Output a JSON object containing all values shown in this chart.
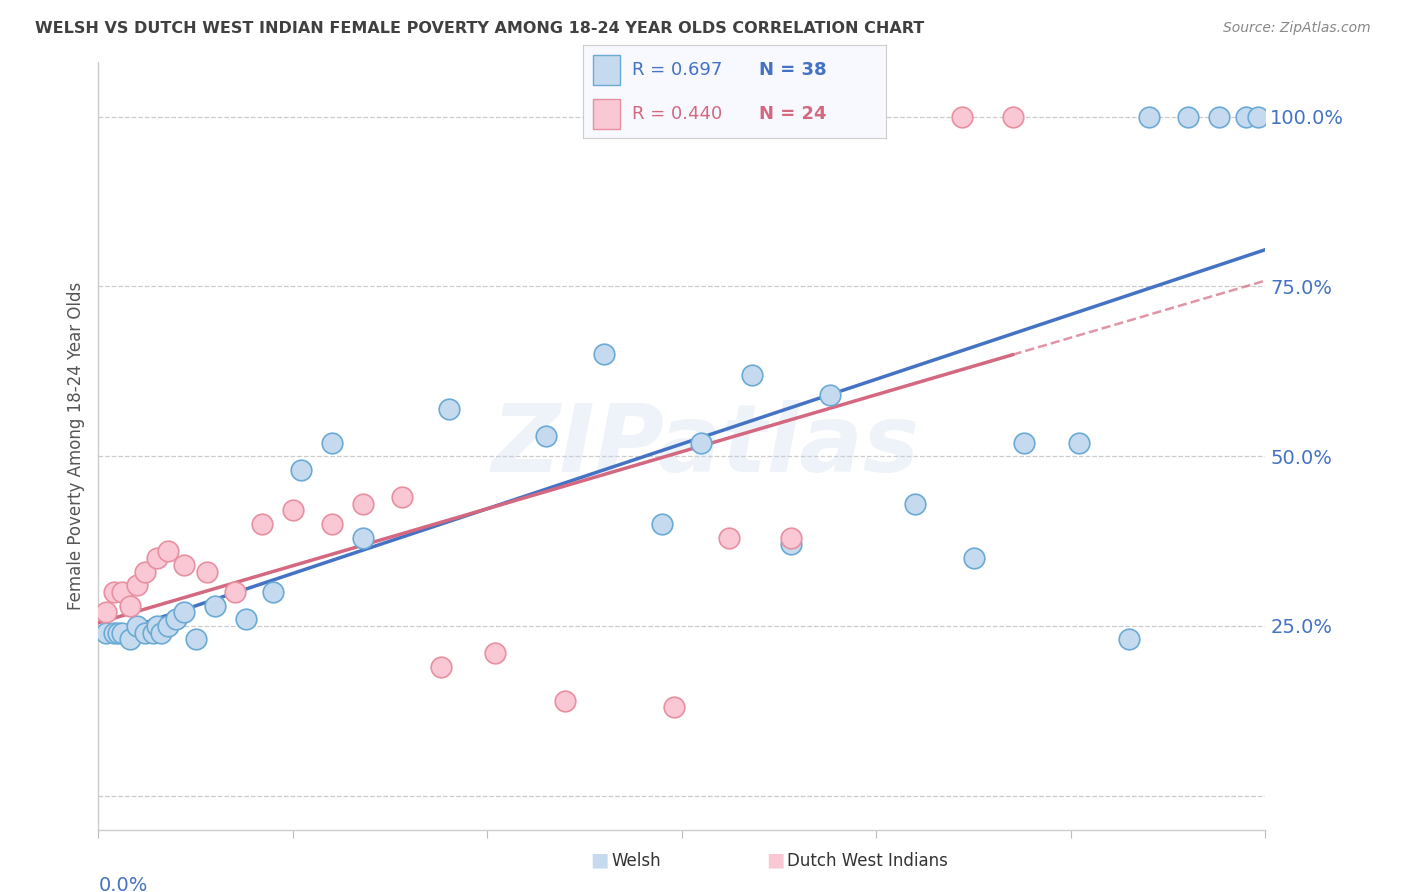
{
  "title": "WELSH VS DUTCH WEST INDIAN FEMALE POVERTY AMONG 18-24 YEAR OLDS CORRELATION CHART",
  "source": "Source: ZipAtlas.com",
  "ylabel": "Female Poverty Among 18-24 Year Olds",
  "y_ticks": [
    0.0,
    0.25,
    0.5,
    0.75,
    1.0
  ],
  "y_tick_labels": [
    "",
    "25.0%",
    "50.0%",
    "75.0%",
    "100.0%"
  ],
  "xlim": [
    0.0,
    0.3
  ],
  "ylim": [
    -0.05,
    1.08
  ],
  "welsh_R": 0.697,
  "welsh_N": 38,
  "dutch_R": 0.44,
  "dutch_N": 24,
  "welsh_fill_color": "#C5DAEF",
  "dutch_fill_color": "#F9C8D4",
  "welsh_edge_color": "#6AAAD4",
  "dutch_edge_color": "#E88FA0",
  "welsh_line_color": "#4472C4",
  "dutch_line_color": "#D46880",
  "right_tick_color": "#4472C4",
  "background_color": "#FFFFFF",
  "grid_color": "#CCCCCC",
  "axis_color": "#CCCCCC",
  "title_color": "#404040",
  "source_color": "#888888",
  "watermark": "ZIPatlas",
  "welsh_x": [
    0.002,
    0.004,
    0.005,
    0.006,
    0.008,
    0.01,
    0.012,
    0.014,
    0.015,
    0.016,
    0.018,
    0.02,
    0.022,
    0.025,
    0.03,
    0.038,
    0.045,
    0.052,
    0.06,
    0.068,
    0.09,
    0.115,
    0.13,
    0.145,
    0.155,
    0.168,
    0.178,
    0.188,
    0.21,
    0.225,
    0.238,
    0.252,
    0.265,
    0.27,
    0.28,
    0.288,
    0.295,
    0.298
  ],
  "welsh_y": [
    0.24,
    0.24,
    0.24,
    0.24,
    0.23,
    0.25,
    0.24,
    0.24,
    0.25,
    0.24,
    0.25,
    0.26,
    0.27,
    0.23,
    0.28,
    0.26,
    0.3,
    0.48,
    0.52,
    0.38,
    0.57,
    0.53,
    0.65,
    0.4,
    0.52,
    0.62,
    0.37,
    0.59,
    0.43,
    0.35,
    0.52,
    0.52,
    0.23,
    1.0,
    1.0,
    1.0,
    1.0,
    1.0
  ],
  "dutch_x": [
    0.002,
    0.004,
    0.006,
    0.008,
    0.01,
    0.012,
    0.015,
    0.018,
    0.022,
    0.028,
    0.035,
    0.042,
    0.05,
    0.06,
    0.068,
    0.078,
    0.088,
    0.102,
    0.12,
    0.148,
    0.162,
    0.178,
    0.222,
    0.235
  ],
  "dutch_y": [
    0.27,
    0.3,
    0.3,
    0.28,
    0.31,
    0.33,
    0.35,
    0.36,
    0.34,
    0.33,
    0.3,
    0.4,
    0.42,
    0.4,
    0.43,
    0.44,
    0.19,
    0.21,
    0.14,
    0.13,
    0.38,
    0.38,
    1.0,
    1.0
  ],
  "welsh_line_start_x": 0.0,
  "welsh_line_end_x": 0.3,
  "dutch_line_solid_end_x": 0.235,
  "dutch_line_dash_end_x": 0.3
}
